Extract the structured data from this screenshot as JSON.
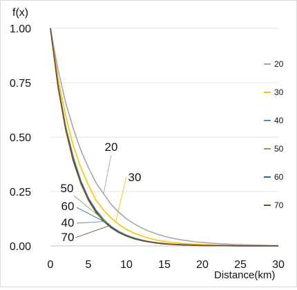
{
  "chart_data": {
    "type": "line",
    "title": "",
    "xlabel": "Distance(km)",
    "ylabel": "f(x)",
    "xlim": [
      0,
      30
    ],
    "ylim": [
      0,
      1
    ],
    "xticks": [
      "0",
      "5",
      "10",
      "15",
      "20",
      "25",
      "30"
    ],
    "xtick_values": [
      0,
      5,
      10,
      15,
      20,
      25,
      30
    ],
    "yticks": [
      "0.00",
      "0.25",
      "0.50",
      "0.75",
      "1.00"
    ],
    "ytick_values": [
      0,
      0.25,
      0.5,
      0.75,
      1.0
    ],
    "grid": "horizontal",
    "legend_position": "right",
    "x": [
      0,
      1,
      2,
      3,
      4,
      5,
      6,
      7,
      8,
      9,
      10,
      11,
      12,
      13,
      14,
      15,
      16,
      17,
      18,
      19,
      20,
      21,
      22,
      23,
      24,
      25,
      26,
      27,
      28,
      29,
      30
    ],
    "series": [
      {
        "name": "20",
        "color": "#a6a6a6",
        "values": [
          1.0,
          0.81,
          0.66,
          0.54,
          0.44,
          0.36,
          0.29,
          0.24,
          0.19,
          0.155,
          0.125,
          0.102,
          0.083,
          0.067,
          0.055,
          0.044,
          0.036,
          0.029,
          0.024,
          0.019,
          0.016,
          0.013,
          0.011,
          0.009,
          0.007,
          0.006,
          0.005,
          0.004,
          0.003,
          0.002,
          0.002
        ]
      },
      {
        "name": "30",
        "color": "#f5c400",
        "values": [
          1.0,
          0.77,
          0.6,
          0.46,
          0.36,
          0.28,
          0.21,
          0.165,
          0.128,
          0.099,
          0.076,
          0.059,
          0.046,
          0.035,
          0.027,
          0.021,
          0.016,
          0.013,
          0.01,
          0.008,
          0.006,
          0.005,
          0.004,
          0.003,
          0.002,
          0.002,
          0.001,
          0.001,
          0.001,
          0.0,
          0.0
        ]
      },
      {
        "name": "40",
        "color": "#5b8ab8",
        "values": [
          1.0,
          0.74,
          0.55,
          0.41,
          0.3,
          0.22,
          0.165,
          0.122,
          0.09,
          0.067,
          0.05,
          0.037,
          0.027,
          0.02,
          0.015,
          0.011,
          0.008,
          0.006,
          0.005,
          0.003,
          0.002,
          0.002,
          0.001,
          0.001,
          0.001,
          0.0,
          0.0,
          0.0,
          0.0,
          0.0,
          0.0
        ]
      },
      {
        "name": "50",
        "color": "#70ad47",
        "values": [
          1.0,
          0.74,
          0.55,
          0.41,
          0.3,
          0.22,
          0.163,
          0.121,
          0.089,
          0.066,
          0.049,
          0.036,
          0.027,
          0.02,
          0.015,
          0.011,
          0.008,
          0.006,
          0.004,
          0.003,
          0.002,
          0.002,
          0.001,
          0.001,
          0.001,
          0.0,
          0.0,
          0.0,
          0.0,
          0.0,
          0.0
        ]
      },
      {
        "name": "60",
        "color": "#2e5fa3",
        "values": [
          1.0,
          0.735,
          0.54,
          0.4,
          0.295,
          0.217,
          0.16,
          0.118,
          0.087,
          0.064,
          0.047,
          0.035,
          0.026,
          0.019,
          0.014,
          0.01,
          0.008,
          0.006,
          0.004,
          0.003,
          0.002,
          0.002,
          0.001,
          0.001,
          0.001,
          0.0,
          0.0,
          0.0,
          0.0,
          0.0,
          0.0
        ]
      },
      {
        "name": "70",
        "color": "#7b4a2a",
        "values": [
          1.0,
          0.73,
          0.535,
          0.39,
          0.287,
          0.21,
          0.154,
          0.113,
          0.083,
          0.061,
          0.045,
          0.033,
          0.024,
          0.018,
          0.013,
          0.009,
          0.007,
          0.005,
          0.004,
          0.003,
          0.002,
          0.001,
          0.001,
          0.001,
          0.0,
          0.0,
          0.0,
          0.0,
          0.0,
          0.0,
          0.0
        ]
      }
    ],
    "annotations": [
      "20",
      "30",
      "50",
      "60",
      "40",
      "70"
    ]
  }
}
